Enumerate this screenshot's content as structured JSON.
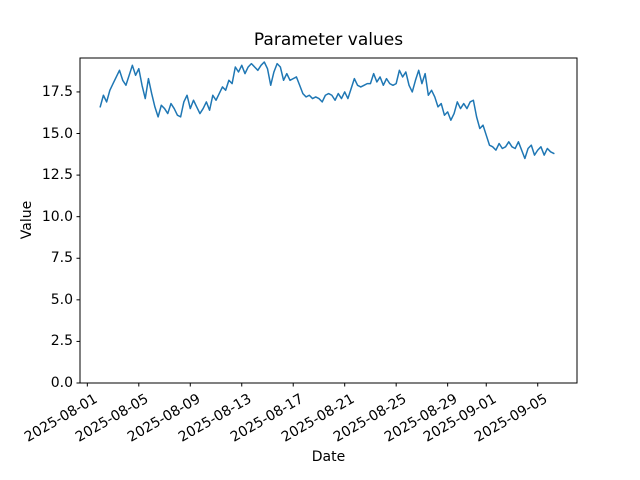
{
  "chart_data": {
    "type": "line",
    "title": "Parameter values",
    "xlabel": "Date",
    "ylabel": "Value",
    "grid": false,
    "legend": "none",
    "line_color": "#1f77b4",
    "background_color": "#ffffff",
    "ylim": [
      0,
      19.54
    ],
    "xlim": [
      "2025-07-31T10:20",
      "2025-09-08T01:15"
    ],
    "y_ticks": [
      {
        "label": "0.0",
        "value": 0.0
      },
      {
        "label": "2.5",
        "value": 2.5
      },
      {
        "label": "5.0",
        "value": 5.0
      },
      {
        "label": "7.5",
        "value": 7.5
      },
      {
        "label": "10.0",
        "value": 10.0
      },
      {
        "label": "12.5",
        "value": 12.5
      },
      {
        "label": "15.0",
        "value": 15.0
      },
      {
        "label": "17.5",
        "value": 17.5
      }
    ],
    "x_ticks": [
      {
        "label": "2025-08-01",
        "date": "2025-08-01"
      },
      {
        "label": "2025-08-05",
        "date": "2025-08-05"
      },
      {
        "label": "2025-08-09",
        "date": "2025-08-09"
      },
      {
        "label": "2025-08-13",
        "date": "2025-08-13"
      },
      {
        "label": "2025-08-17",
        "date": "2025-08-17"
      },
      {
        "label": "2025-08-21",
        "date": "2025-08-21"
      },
      {
        "label": "2025-08-25",
        "date": "2025-08-25"
      },
      {
        "label": "2025-08-29",
        "date": "2025-08-29"
      },
      {
        "label": "2025-09-01",
        "date": "2025-09-01"
      },
      {
        "label": "2025-09-05",
        "date": "2025-09-05"
      }
    ],
    "series": [
      {
        "name": "parameter-values",
        "color": "#1f77b4",
        "x_start": "2025-08-02T00:00",
        "x_step_hours": 6,
        "values": [
          16.6,
          17.3,
          16.9,
          17.6,
          18.0,
          18.4,
          18.8,
          18.2,
          17.9,
          18.5,
          19.1,
          18.5,
          18.9,
          17.9,
          17.1,
          18.3,
          17.4,
          16.6,
          16.0,
          16.7,
          16.5,
          16.2,
          16.8,
          16.5,
          16.1,
          16.0,
          16.9,
          17.3,
          16.5,
          17.0,
          16.6,
          16.2,
          16.5,
          16.9,
          16.4,
          17.3,
          17.0,
          17.4,
          17.8,
          17.6,
          18.2,
          18.0,
          19.0,
          18.7,
          19.1,
          18.6,
          19.0,
          19.2,
          19.0,
          18.8,
          19.1,
          19.3,
          18.9,
          17.9,
          18.7,
          19.2,
          19.0,
          18.2,
          18.6,
          18.2,
          18.3,
          18.4,
          17.9,
          17.4,
          17.2,
          17.3,
          17.1,
          17.2,
          17.1,
          16.9,
          17.3,
          17.4,
          17.3,
          17.0,
          17.4,
          17.1,
          17.5,
          17.1,
          17.7,
          18.3,
          17.9,
          17.8,
          17.9,
          18.0,
          18.0,
          18.6,
          18.1,
          18.4,
          17.9,
          18.3,
          18.0,
          17.9,
          18.0,
          18.8,
          18.4,
          18.7,
          17.9,
          17.5,
          18.2,
          18.8,
          18.0,
          18.6,
          17.3,
          17.6,
          17.2,
          16.6,
          16.8,
          16.1,
          16.3,
          15.8,
          16.2,
          16.9,
          16.5,
          16.8,
          16.5,
          16.9,
          17.0,
          16.0,
          15.3,
          15.5,
          14.9,
          14.3,
          14.2,
          14.0,
          14.4,
          14.1,
          14.2,
          14.5,
          14.2,
          14.1,
          14.5,
          14.0,
          13.5,
          14.1,
          14.3,
          13.7,
          14.0,
          14.2,
          13.7,
          14.1,
          13.9,
          13.8
        ]
      }
    ]
  }
}
